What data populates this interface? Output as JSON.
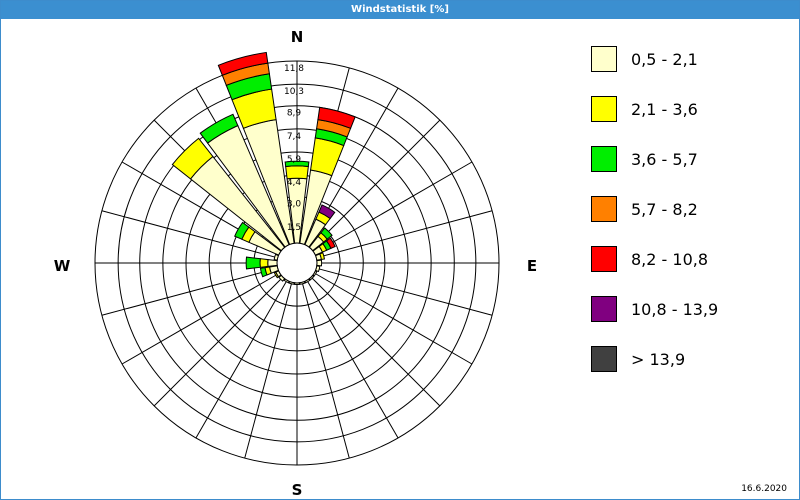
{
  "window": {
    "title": "Windstatistik [%]",
    "date": "16.6.2020"
  },
  "compass": {
    "north": "N",
    "east": "E",
    "south": "S",
    "west": "W"
  },
  "colors": {
    "frame": "#3b8fd0",
    "grid": "#000000"
  },
  "chart_data": {
    "type": "wind-rose",
    "title": "Windstatistik [%]",
    "unit": "%",
    "radial_ticks": [
      "1,5",
      "3,0",
      "4,4",
      "5,9",
      "7,4",
      "8,9",
      "10,3",
      "11,8"
    ],
    "radial_values": [
      1.5,
      3.0,
      4.4,
      5.9,
      7.4,
      8.9,
      10.3,
      11.8
    ],
    "rmax": 11.8,
    "sector_width_deg": 15,
    "bins": [
      {
        "label": "0,5 - 2,1",
        "color": "#ffffcc"
      },
      {
        "label": "2,1 - 3,6",
        "color": "#ffff00"
      },
      {
        "label": "3,6 - 5,7",
        "color": "#00ee00"
      },
      {
        "label": "5,7 - 8,2",
        "color": "#ff8000"
      },
      {
        "label": "8,2 - 10,8",
        "color": "#ff0000"
      },
      {
        "label": "10,8 - 13,9",
        "color": "#800080"
      },
      {
        "label": "> 13,9",
        "color": "#404040"
      }
    ],
    "sectors": [
      {
        "direction_deg": 0,
        "values": [
          4.2,
          0.8,
          0.3,
          0,
          0,
          0,
          0
        ]
      },
      {
        "direction_deg": 15,
        "values": [
          4.8,
          2.1,
          0.6,
          0.6,
          0.8,
          0,
          0
        ]
      },
      {
        "direction_deg": 30,
        "values": [
          1.8,
          0.5,
          0,
          0,
          0,
          0.5,
          0
        ]
      },
      {
        "direction_deg": 45,
        "values": [
          0.9,
          0.3,
          0.4,
          0,
          0,
          0,
          0
        ]
      },
      {
        "direction_deg": 60,
        "values": [
          0.5,
          0.3,
          0.3,
          0,
          0.3,
          0,
          0
        ]
      },
      {
        "direction_deg": 75,
        "values": [
          0.3,
          0.2,
          0,
          0,
          0,
          0,
          0
        ]
      },
      {
        "direction_deg": 90,
        "values": [
          0.3,
          0,
          0,
          0,
          0,
          0,
          0
        ]
      },
      {
        "direction_deg": 105,
        "values": [
          0.2,
          0,
          0,
          0,
          0,
          0,
          0
        ]
      },
      {
        "direction_deg": 120,
        "values": [
          0.1,
          0,
          0,
          0,
          0,
          0,
          0
        ]
      },
      {
        "direction_deg": 135,
        "values": [
          0.1,
          0,
          0,
          0,
          0,
          0,
          0
        ]
      },
      {
        "direction_deg": 150,
        "values": [
          0.1,
          0,
          0,
          0,
          0,
          0,
          0
        ]
      },
      {
        "direction_deg": 165,
        "values": [
          0.1,
          0,
          0,
          0,
          0,
          0,
          0
        ]
      },
      {
        "direction_deg": 180,
        "values": [
          0.1,
          0,
          0,
          0,
          0,
          0,
          0
        ]
      },
      {
        "direction_deg": 195,
        "values": [
          0.1,
          0,
          0,
          0,
          0,
          0,
          0
        ]
      },
      {
        "direction_deg": 210,
        "values": [
          0.1,
          0,
          0,
          0,
          0,
          0,
          0
        ]
      },
      {
        "direction_deg": 225,
        "values": [
          0.2,
          0,
          0,
          0,
          0,
          0,
          0
        ]
      },
      {
        "direction_deg": 240,
        "values": [
          0.2,
          0.1,
          0,
          0,
          0,
          0,
          0
        ]
      },
      {
        "direction_deg": 255,
        "values": [
          0.5,
          0.3,
          0.3,
          0,
          0,
          0,
          0
        ]
      },
      {
        "direction_deg": 270,
        "values": [
          0.6,
          0.5,
          0.9,
          0,
          0,
          0,
          0
        ]
      },
      {
        "direction_deg": 285,
        "values": [
          0.2,
          0,
          0,
          0,
          0,
          0,
          0
        ]
      },
      {
        "direction_deg": 300,
        "values": [
          2.1,
          0.5,
          0.5,
          0,
          0,
          0,
          0
        ]
      },
      {
        "direction_deg": 315,
        "values": [
          7.5,
          1.5,
          0,
          0,
          0,
          0,
          0
        ]
      },
      {
        "direction_deg": 330,
        "values": [
          8.4,
          0,
          0.8,
          0,
          0,
          0,
          0
        ]
      },
      {
        "direction_deg": 345,
        "values": [
          8.1,
          2.0,
          1.0,
          0.7,
          0.7,
          0,
          0
        ]
      }
    ]
  }
}
